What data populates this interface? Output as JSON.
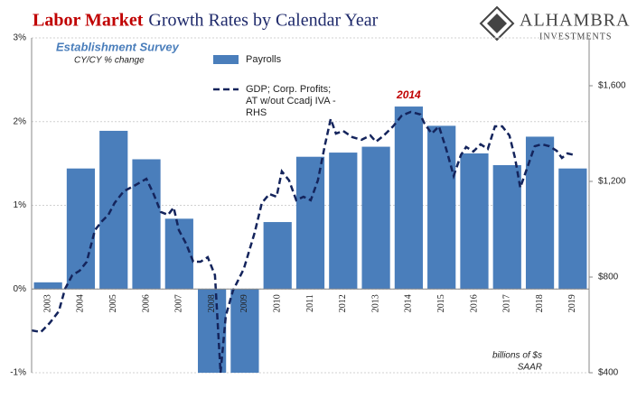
{
  "chart_data": {
    "type": "bar_line",
    "title_highlight": "Labor Market",
    "title_rest": "Growth Rates by Calendar Year",
    "logo_name": "ALHAMBRA",
    "logo_sub": "INVESTMENTS",
    "subtitle": "Establishment Survey",
    "subtitle2": "CY/CY % change",
    "annotation": "2014",
    "units_note": [
      "billions of $s",
      "SAAR"
    ],
    "categories": [
      "2003",
      "2004",
      "2005",
      "2006",
      "2007",
      "2008",
      "2009",
      "2010",
      "2011",
      "2012",
      "2013",
      "2014",
      "2015",
      "2016",
      "2017",
      "2018",
      "2019"
    ],
    "ylim": [
      -1,
      3
    ],
    "yticks": [
      {
        "value": -1,
        "label": "-1%"
      },
      {
        "value": 0,
        "label": "0%"
      },
      {
        "value": 1,
        "label": "1%"
      },
      {
        "value": 2,
        "label": "2%"
      },
      {
        "value": 3,
        "label": "3%"
      }
    ],
    "y2lim": [
      400,
      1800
    ],
    "y2ticks": [
      {
        "value": 400,
        "label": "$400"
      },
      {
        "value": 800,
        "label": "$800"
      },
      {
        "value": 1200,
        "label": "$1,200"
      },
      {
        "value": 1600,
        "label": "$1,600"
      }
    ],
    "xlim": [
      2003,
      2020
    ],
    "grid": true,
    "series": [
      {
        "name": "Payrolls",
        "type": "bar",
        "color": "#4a7ebb",
        "values": [
          0.08,
          1.44,
          1.89,
          1.55,
          0.84,
          -1.0,
          -1.0,
          0.8,
          1.58,
          1.63,
          1.7,
          2.18,
          1.95,
          1.62,
          1.48,
          1.82,
          1.44
        ]
      },
      {
        "name": "GDP; Corp. Profits; AT w/out Ccadj IVA - RHS",
        "name_lines": [
          "GDP; Corp. Profits;",
          "AT w/out Ccadj IVA -",
          "RHS"
        ],
        "type": "line",
        "axis": "y2",
        "color": "#14245c",
        "x": [
          2003.0,
          2003.28,
          2003.55,
          2003.83,
          2004.02,
          2004.24,
          2004.46,
          2004.68,
          2004.93,
          2005.15,
          2005.34,
          2005.53,
          2005.81,
          2006.17,
          2006.5,
          2006.72,
          2006.94,
          2007.16,
          2007.33,
          2007.49,
          2007.71,
          2007.93,
          2008.15,
          2008.37,
          2008.59,
          2008.76,
          2008.92,
          2009.14,
          2009.47,
          2009.8,
          2010.02,
          2010.25,
          2010.47,
          2010.63,
          2010.85,
          2011.07,
          2011.29,
          2011.51,
          2011.73,
          2011.95,
          2012.12,
          2012.28,
          2012.5,
          2012.78,
          2013.06,
          2013.33,
          2013.5,
          2013.74,
          2014.02,
          2014.29,
          2014.57,
          2014.85,
          2014.98,
          2015.2,
          2015.42,
          2015.64,
          2015.87,
          2016.09,
          2016.25,
          2016.47,
          2016.69,
          2016.91,
          2017.13,
          2017.35,
          2017.57,
          2017.74,
          2017.9,
          2018.12,
          2018.34,
          2018.56,
          2018.79,
          2019.01,
          2019.17,
          2019.34,
          2019.56
        ],
        "values": [
          577,
          570,
          608,
          657,
          751,
          808,
          826,
          864,
          996,
          1034,
          1060,
          1110,
          1159,
          1185,
          1211,
          1147,
          1072,
          1060,
          1091,
          996,
          940,
          864,
          864,
          883,
          808,
          400,
          638,
          743,
          834,
          985,
          1110,
          1147,
          1136,
          1242,
          1204,
          1121,
          1136,
          1121,
          1204,
          1355,
          1461,
          1400,
          1411,
          1385,
          1374,
          1392,
          1366,
          1392,
          1430,
          1476,
          1491,
          1480,
          1442,
          1400,
          1430,
          1336,
          1223,
          1310,
          1344,
          1325,
          1355,
          1336,
          1430,
          1430,
          1392,
          1298,
          1174,
          1260,
          1347,
          1355,
          1347,
          1328,
          1298,
          1317,
          1310
        ]
      }
    ]
  }
}
